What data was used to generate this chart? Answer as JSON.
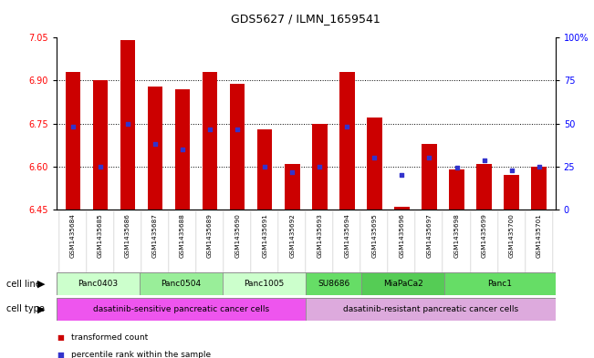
{
  "title": "GDS5627 / ILMN_1659541",
  "samples": [
    "GSM1435684",
    "GSM1435685",
    "GSM1435686",
    "GSM1435687",
    "GSM1435688",
    "GSM1435689",
    "GSM1435690",
    "GSM1435691",
    "GSM1435692",
    "GSM1435693",
    "GSM1435694",
    "GSM1435695",
    "GSM1435696",
    "GSM1435697",
    "GSM1435698",
    "GSM1435699",
    "GSM1435700",
    "GSM1435701"
  ],
  "bar_heights": [
    6.93,
    6.9,
    7.04,
    6.88,
    6.87,
    6.93,
    6.89,
    6.73,
    6.61,
    6.75,
    6.93,
    6.77,
    6.46,
    6.68,
    6.59,
    6.61,
    6.57,
    6.6
  ],
  "blue_dot_y": [
    6.74,
    6.6,
    6.75,
    6.68,
    6.66,
    6.73,
    6.73,
    6.6,
    6.58,
    6.6,
    6.74,
    6.63,
    6.57,
    6.63,
    6.595,
    6.62,
    6.585,
    6.6
  ],
  "ylim_left": [
    6.45,
    7.05
  ],
  "yticks_left": [
    6.45,
    6.6,
    6.75,
    6.9,
    7.05
  ],
  "yticks_right": [
    0,
    25,
    50,
    75,
    100
  ],
  "bar_color": "#cc0000",
  "dot_color": "#3333cc",
  "background_color": "#ffffff",
  "cell_line_groups": [
    {
      "label": "Panc0403",
      "start": 0,
      "end": 2,
      "color": "#ccffcc"
    },
    {
      "label": "Panc0504",
      "start": 3,
      "end": 5,
      "color": "#99ee99"
    },
    {
      "label": "Panc1005",
      "start": 6,
      "end": 8,
      "color": "#ccffcc"
    },
    {
      "label": "SU8686",
      "start": 9,
      "end": 10,
      "color": "#66dd66"
    },
    {
      "label": "MiaPaCa2",
      "start": 11,
      "end": 13,
      "color": "#55cc55"
    },
    {
      "label": "Panc1",
      "start": 14,
      "end": 17,
      "color": "#66dd66"
    }
  ],
  "cell_type_groups": [
    {
      "label": "dasatinib-sensitive pancreatic cancer cells",
      "start": 0,
      "end": 8,
      "color": "#ee55ee"
    },
    {
      "label": "dasatinib-resistant pancreatic cancer cells",
      "start": 9,
      "end": 17,
      "color": "#ddaadd"
    }
  ],
  "legend_items": [
    {
      "color": "#cc0000",
      "label": "transformed count",
      "marker": "s"
    },
    {
      "color": "#3333cc",
      "label": "percentile rank within the sample",
      "marker": "s"
    }
  ]
}
